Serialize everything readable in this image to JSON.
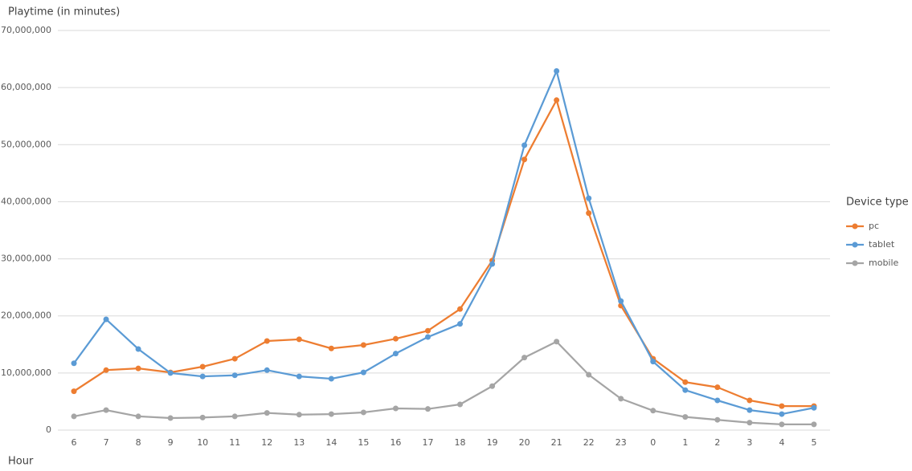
{
  "chart_data": {
    "type": "line",
    "y_label": "Playtime (in minutes)",
    "x_label": "Hour",
    "legend_title": "Device type",
    "legend_position": "right",
    "grid": true,
    "categories": [
      "6",
      "7",
      "8",
      "9",
      "10",
      "11",
      "12",
      "13",
      "14",
      "15",
      "16",
      "17",
      "18",
      "19",
      "20",
      "21",
      "22",
      "23",
      "0",
      "1",
      "2",
      "3",
      "4",
      "5"
    ],
    "ylim": [
      0,
      70000000
    ],
    "yticks": [
      0,
      {
        "value": 10000000,
        "label": "10,000,000"
      },
      {
        "value": 20000000,
        "label": "20,000,000"
      },
      {
        "value": 30000000,
        "label": "30,000,000"
      },
      {
        "value": 40000000,
        "label": "40,000,000"
      },
      {
        "value": 50000000,
        "label": "50,000,000"
      },
      {
        "value": 60000000,
        "label": "60,000,000"
      },
      {
        "value": 70000000,
        "label": "70,000,000"
      }
    ],
    "series": [
      {
        "name": "pc",
        "color": "#ed7d31",
        "values": [
          6800000,
          10500000,
          10800000,
          10100000,
          11100000,
          12500000,
          15600000,
          15900000,
          14300000,
          14900000,
          16000000,
          17400000,
          21200000,
          29700000,
          47400000,
          57800000,
          38000000,
          21800000,
          12500000,
          8400000,
          7500000,
          5200000,
          4200000,
          4200000
        ]
      },
      {
        "name": "tablet",
        "color": "#5b9bd5",
        "values": [
          11700000,
          19400000,
          14200000,
          10000000,
          9400000,
          9600000,
          10500000,
          9400000,
          9000000,
          10100000,
          13400000,
          16300000,
          18600000,
          29100000,
          49900000,
          62900000,
          40600000,
          22600000,
          12000000,
          7000000,
          5200000,
          3500000,
          2800000,
          3900000
        ]
      },
      {
        "name": "mobile",
        "color": "#a5a5a5",
        "values": [
          2400000,
          3500000,
          2400000,
          2100000,
          2200000,
          2400000,
          3000000,
          2700000,
          2800000,
          3100000,
          3800000,
          3700000,
          4500000,
          7700000,
          12700000,
          15500000,
          9700000,
          5500000,
          3400000,
          2300000,
          1800000,
          1300000,
          1000000,
          1000000
        ]
      }
    ]
  }
}
